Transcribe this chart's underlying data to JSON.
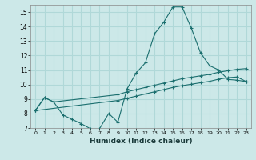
{
  "xlabel": "Humidex (Indice chaleur)",
  "xlim": [
    -0.5,
    23.5
  ],
  "ylim": [
    7,
    15.5
  ],
  "background_color": "#cce8e8",
  "grid_color": "#b0d8d8",
  "line_color": "#1a6e6e",
  "line1_x": [
    0,
    1,
    2,
    3,
    4,
    5,
    6,
    7,
    8,
    9,
    10,
    11,
    12,
    13,
    14,
    15,
    16,
    17,
    18,
    19,
    20,
    21,
    22,
    23
  ],
  "line1_y": [
    8.2,
    9.1,
    8.8,
    7.9,
    7.6,
    7.3,
    6.95,
    6.95,
    8.0,
    7.4,
    9.7,
    10.8,
    11.5,
    13.5,
    14.3,
    15.35,
    15.35,
    13.9,
    12.2,
    11.3,
    11.0,
    10.35,
    10.3,
    10.2
  ],
  "line2_x": [
    0,
    1,
    2,
    9,
    10,
    11,
    12,
    13,
    14,
    15,
    16,
    17,
    18,
    19,
    20,
    21,
    22,
    23
  ],
  "line2_y": [
    8.2,
    9.1,
    8.8,
    9.3,
    9.5,
    9.65,
    9.8,
    9.95,
    10.1,
    10.25,
    10.4,
    10.5,
    10.6,
    10.7,
    10.85,
    10.95,
    11.05,
    11.1
  ],
  "line3_x": [
    0,
    9,
    10,
    11,
    12,
    13,
    14,
    15,
    16,
    17,
    18,
    19,
    20,
    21,
    22,
    23
  ],
  "line3_y": [
    8.2,
    8.9,
    9.05,
    9.2,
    9.35,
    9.5,
    9.65,
    9.8,
    9.92,
    10.02,
    10.12,
    10.22,
    10.37,
    10.47,
    10.52,
    10.2
  ]
}
